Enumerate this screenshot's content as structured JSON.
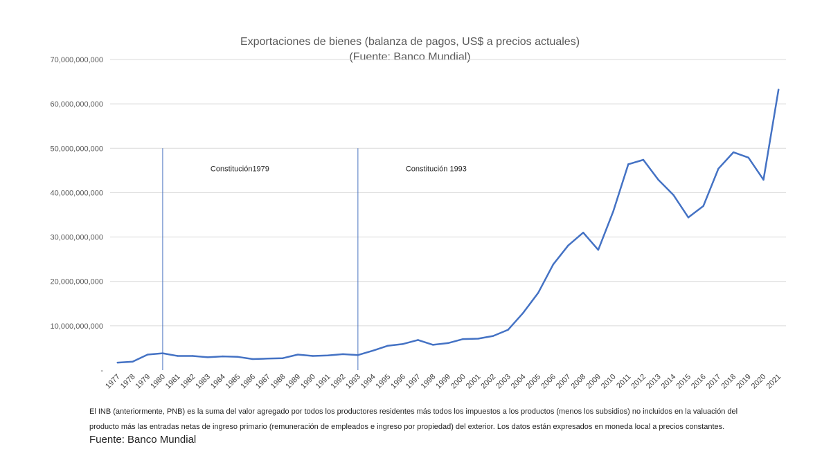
{
  "chart_data": {
    "type": "line",
    "title": "Exportaciones de bienes (balanza de pagos, US$ a precios actuales)",
    "subtitle": "(Fuente: Banco Mundial)",
    "xlabel": "",
    "ylabel": "",
    "ylim": [
      0,
      70000000000
    ],
    "yticks": [
      {
        "value": 0,
        "label": "-"
      },
      {
        "value": 10000000000,
        "label": "10,000,000,000"
      },
      {
        "value": 20000000000,
        "label": "20,000,000,000"
      },
      {
        "value": 30000000000,
        "label": "30,000,000,000"
      },
      {
        "value": 40000000000,
        "label": "40,000,000,000"
      },
      {
        "value": 50000000000,
        "label": "50,000,000,000"
      },
      {
        "value": 60000000000,
        "label": "60,000,000,000"
      },
      {
        "value": 70000000000,
        "label": "70,000,000,000"
      }
    ],
    "grid": true,
    "legend": "none",
    "categories": [
      "1977",
      "1978",
      "1979",
      "1980",
      "1981",
      "1982",
      "1983",
      "1984",
      "1985",
      "1986",
      "1987",
      "1988",
      "1989",
      "1990",
      "1991",
      "1992",
      "1993",
      "1994",
      "1995",
      "1996",
      "1997",
      "1998",
      "1999",
      "2000",
      "2001",
      "2002",
      "2003",
      "2004",
      "2005",
      "2006",
      "2007",
      "2008",
      "2009",
      "2010",
      "2011",
      "2012",
      "2013",
      "2014",
      "2015",
      "2016",
      "2017",
      "2018",
      "2019",
      "2020",
      "2021"
    ],
    "series": [
      {
        "color": "#4472c4",
        "values": [
          1700000000,
          1900000000,
          3500000000,
          3800000000,
          3200000000,
          3200000000,
          2900000000,
          3100000000,
          3000000000,
          2500000000,
          2600000000,
          2700000000,
          3500000000,
          3200000000,
          3300000000,
          3600000000,
          3400000000,
          4400000000,
          5500000000,
          5900000000,
          6800000000,
          5700000000,
          6100000000,
          7000000000,
          7100000000,
          7700000000,
          9100000000,
          12900000000,
          17400000000,
          23800000000,
          28100000000,
          31000000000,
          27100000000,
          35800000000,
          46400000000,
          47400000000,
          42900000000,
          39500000000,
          34400000000,
          37000000000,
          45400000000,
          49100000000,
          47900000000,
          42900000000,
          63200000000
        ]
      }
    ],
    "annotations": [
      {
        "x": "1980",
        "top_value": 50000000000,
        "text": "Constitución1979",
        "color": "#4a72c0"
      },
      {
        "x": "1993",
        "top_value": 50000000000,
        "text": "Constitución 1993",
        "color": "#4a72c0"
      }
    ]
  },
  "footer": {
    "note": "El INB (anteriormente, PNB) es la suma del valor agregado por todos los productores residentes más todos los impuestos a los productos (menos los subsidios) no incluidos en la valuación del producto más las entradas netas de ingreso primario (remuneración de empleados e ingreso por propiedad) del exterior. Los datos están expresados en moneda local a precios constantes.",
    "source": "Fuente: Banco Mundial"
  }
}
